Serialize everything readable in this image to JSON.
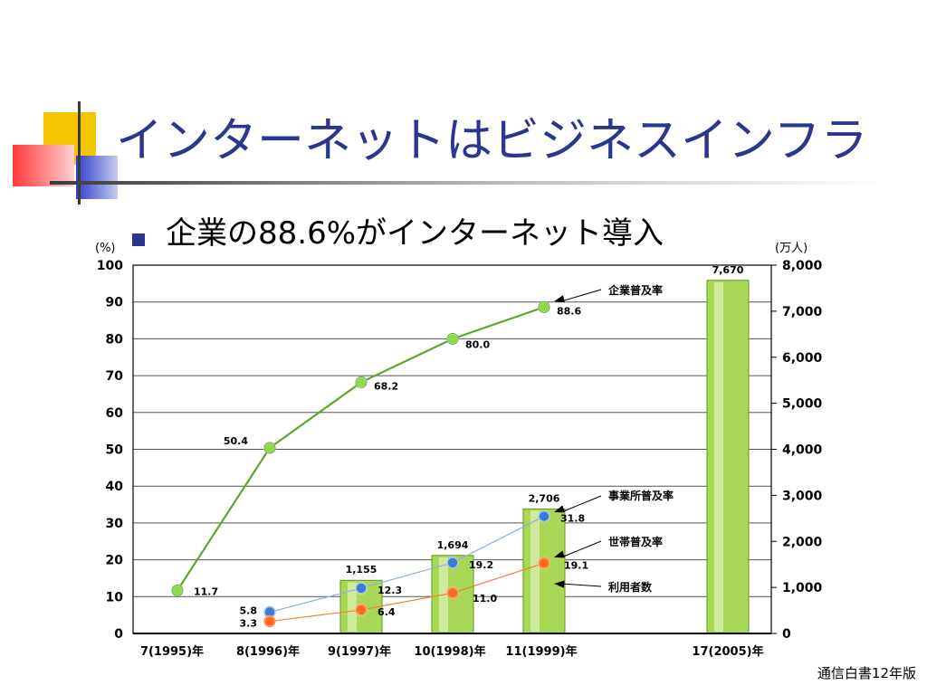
{
  "slide": {
    "title": "インターネットはビジネスインフラ",
    "bullet": "企業の88.6%がインターネット導入",
    "source": "通信白書12年版"
  },
  "colors": {
    "title": "#2b3691",
    "bullet": "#2b3691",
    "deco_yellow": "#f4c500",
    "deco_blue": "#2f3fc8",
    "deco_red": "#ff4848",
    "company_line": "#5aa82a",
    "company_marker": "#8ed84a",
    "office_line": "#8fb0e0",
    "office_marker": "#3a7bd5",
    "household_line": "#ff7a30",
    "household_marker": "#ff6a20",
    "bar_fill": "#a8d856",
    "bar_stroke": "#5a9a20"
  },
  "chart_data": {
    "type": "bar-line combo",
    "categories": [
      "7(1995)年",
      "8(1996)年",
      "9(1997)年",
      "10(1998)年",
      "11(1999)年",
      "17(2005)年"
    ],
    "left_axis": {
      "unit_label": "(%)",
      "min": 0,
      "max": 100,
      "ticks": [
        "0",
        "10",
        "20",
        "30",
        "40",
        "50",
        "60",
        "70",
        "80",
        "90",
        "100"
      ]
    },
    "right_axis": {
      "unit_label": "(万人)",
      "min": 0,
      "max": 8000,
      "ticks": [
        "0",
        "1,000",
        "2,000",
        "3,000",
        "4,000",
        "5,000",
        "6,000",
        "7,000",
        "8,000"
      ]
    },
    "bars": {
      "name": "利用者数",
      "axis": "right",
      "values": [
        null,
        null,
        1155,
        1694,
        2706,
        7670
      ],
      "labels": [
        null,
        null,
        "1,155",
        "1,694",
        "2,706",
        "7,670"
      ]
    },
    "series": [
      {
        "name": "企業普及率",
        "axis": "left",
        "values": [
          11.7,
          50.4,
          68.2,
          80.0,
          88.6,
          null
        ],
        "labels": [
          "11.7",
          "50.4",
          "68.2",
          "80.0",
          "88.6",
          null
        ]
      },
      {
        "name": "事業所普及率",
        "axis": "left",
        "values": [
          null,
          5.8,
          12.3,
          19.2,
          31.8,
          null
        ],
        "labels": [
          null,
          "5.8",
          "12.3",
          "19.2",
          "31.8",
          null
        ]
      },
      {
        "name": "世帯普及率",
        "axis": "left",
        "values": [
          null,
          3.3,
          6.4,
          11.0,
          19.1,
          null
        ],
        "labels": [
          null,
          "3.3",
          "6.4",
          "11.0",
          "19.1",
          null
        ]
      }
    ],
    "grid": "horizontal"
  }
}
